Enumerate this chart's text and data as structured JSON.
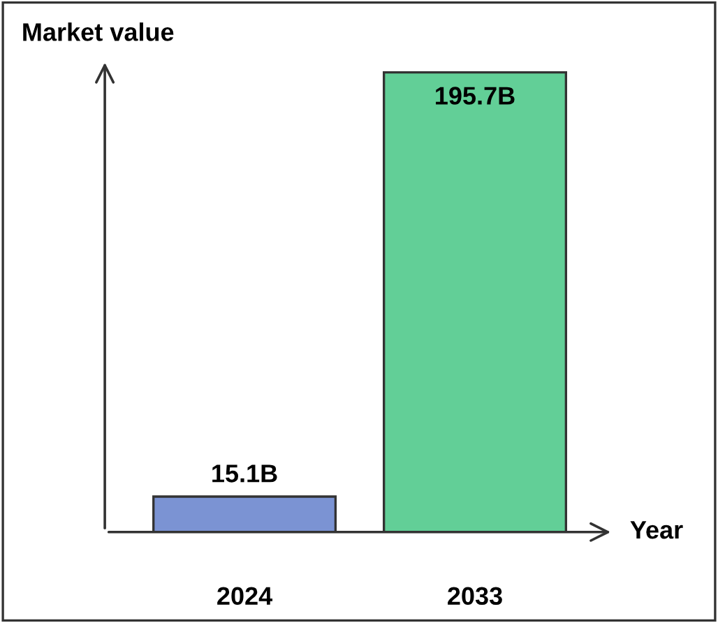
{
  "chart_data": {
    "type": "bar",
    "ylabel": "Market value",
    "xlabel": "Year",
    "categories": [
      "2024",
      "2033"
    ],
    "values": [
      15.1,
      195.7
    ],
    "value_labels": [
      "15.1B",
      "195.7B"
    ],
    "colors": [
      "#7b93d3",
      "#62cf97"
    ],
    "grid": false,
    "legend": false
  }
}
